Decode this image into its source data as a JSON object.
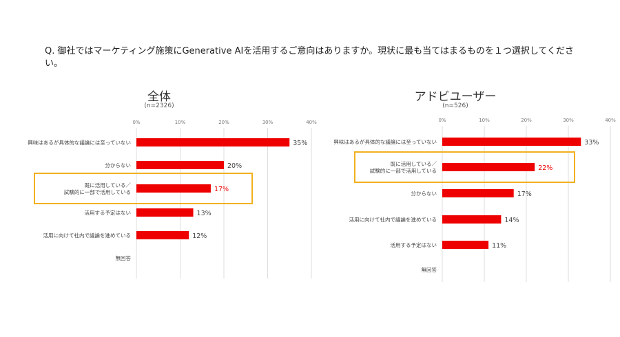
{
  "question": "Q. 御社ではマーケティング施策にGenerative AIを活用するご意向はありますか。現状に最も当てはまるものを１つ選択してください。",
  "colors": {
    "bar": "#ee0000",
    "highlight_border": "#f2b01e",
    "highlight_label": "#ee0000",
    "axis": "#dddddd",
    "text": "#444444"
  },
  "chart_data": [
    {
      "type": "bar",
      "orientation": "horizontal",
      "title": "全体",
      "subtitle": "(n=2326)",
      "xlim": [
        0,
        40
      ],
      "ticks": [
        "0%",
        "10%",
        "20%",
        "30%",
        "40%"
      ],
      "grid": true,
      "categories": [
        [
          "興味はあるが具体的な議論には至っていない"
        ],
        [
          "分からない"
        ],
        [
          "既に活用している／",
          "試験的に一部で活用している"
        ],
        [
          "活用する予定はない"
        ],
        [
          "活用に向けて社内で議論を進めている"
        ],
        [
          "無回答"
        ]
      ],
      "values": [
        35,
        20,
        17,
        13,
        12,
        null
      ],
      "value_labels": [
        "35%",
        "20%",
        "17%",
        "13%",
        "12%",
        ""
      ],
      "highlight_index": 2
    },
    {
      "type": "bar",
      "orientation": "horizontal",
      "title": "アドビユーザー",
      "subtitle": "(n=526)",
      "xlim": [
        0,
        40
      ],
      "ticks": [
        "0%",
        "10%",
        "20%",
        "30%",
        "40%"
      ],
      "grid": true,
      "categories": [
        [
          "興味はあるが具体的な議論には至っていない"
        ],
        [
          "既に活用している／",
          "試験的に一部で活用している"
        ],
        [
          "分からない"
        ],
        [
          "活用に向けて社内で議論を進めている"
        ],
        [
          "活用する予定はない"
        ],
        [
          "無回答"
        ]
      ],
      "values": [
        33,
        22,
        17,
        14,
        11,
        null
      ],
      "value_labels": [
        "33%",
        "22%",
        "17%",
        "14%",
        "11%",
        ""
      ],
      "highlight_index": 1
    }
  ]
}
